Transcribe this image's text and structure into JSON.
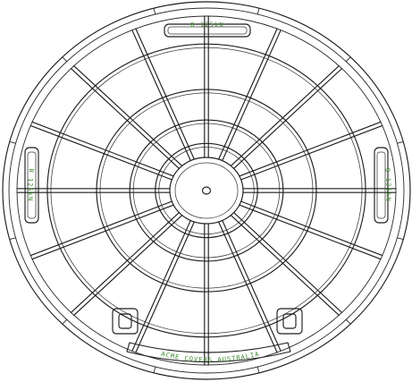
{
  "labels": {
    "top_marking": "B 125kN",
    "bottom_marking": "ACME COVERS AUSTRALIA",
    "left_marking": "B 125kN",
    "right_marking": "B 125kN"
  },
  "colors": {
    "linework": "#1f1f1f",
    "marking_text": "#3c8a2b",
    "background": "#ffffff"
  },
  "structure": {
    "radial_ribs": 16,
    "concentric_rings": 4,
    "rim_notches": 12,
    "lifting_keyholes": 2
  }
}
